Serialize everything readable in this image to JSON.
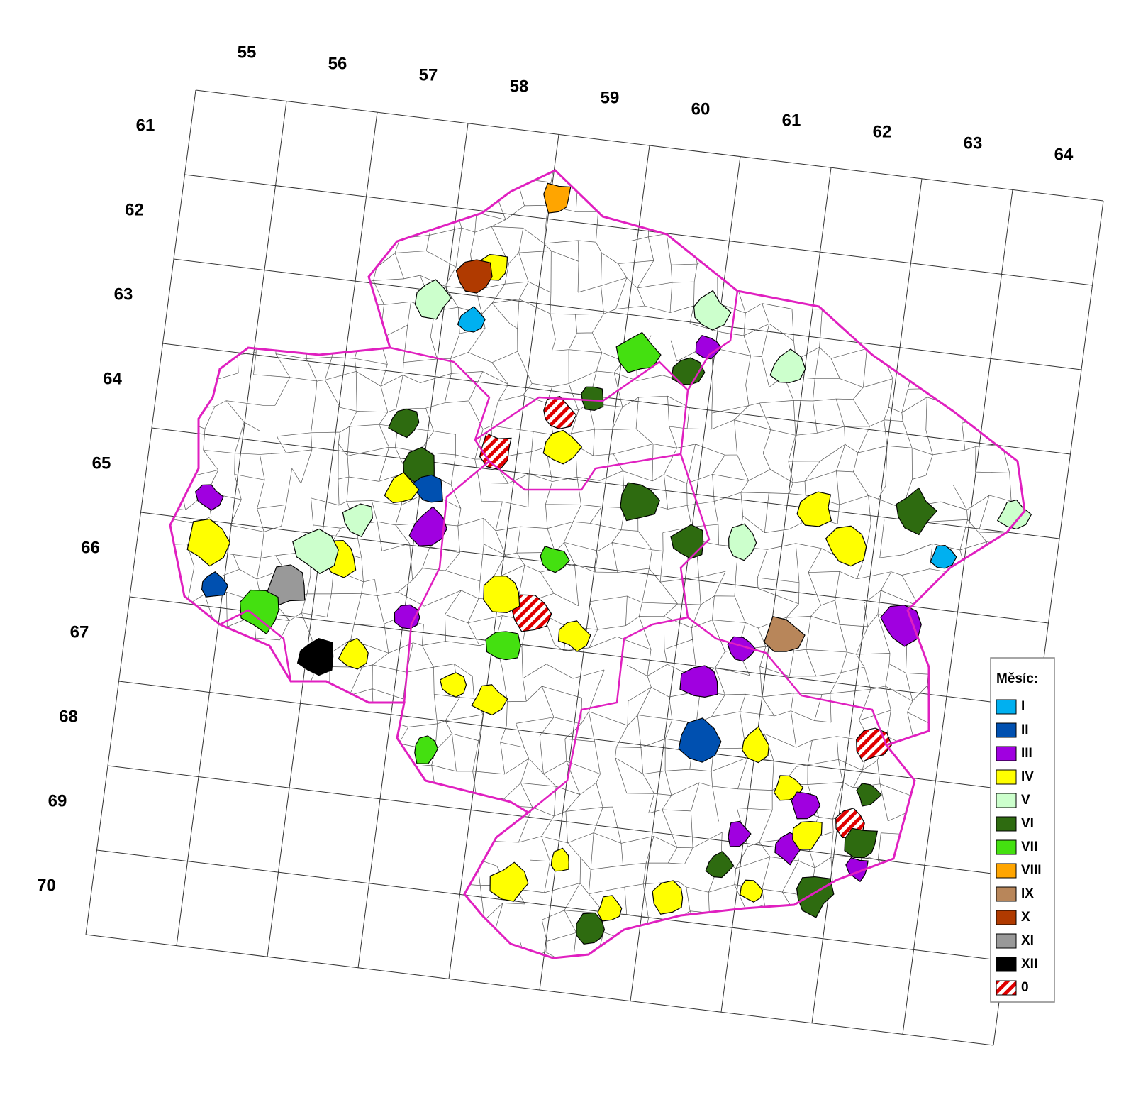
{
  "column_labels": [
    "55",
    "56",
    "57",
    "58",
    "59",
    "60",
    "61",
    "62",
    "63",
    "64"
  ],
  "row_labels": [
    "61",
    "62",
    "63",
    "64",
    "65",
    "66",
    "67",
    "68",
    "69",
    "70"
  ],
  "legend": {
    "title": "Měsíc:",
    "items": [
      {
        "label": "I",
        "color": "#00b0f0"
      },
      {
        "label": "II",
        "color": "#0050b0"
      },
      {
        "label": "III",
        "color": "#a000e0"
      },
      {
        "label": "IV",
        "color": "#ffff00"
      },
      {
        "label": "V",
        "color": "#ccffcc"
      },
      {
        "label": "VI",
        "color": "#2e6b10"
      },
      {
        "label": "VII",
        "color": "#44e010"
      },
      {
        "label": "VIII",
        "color": "#ffa500"
      },
      {
        "label": "IX",
        "color": "#b8865a"
      },
      {
        "label": "X",
        "color": "#b03a00"
      },
      {
        "label": "XI",
        "color": "#999999"
      },
      {
        "label": "XII",
        "color": "#000000"
      },
      {
        "label": "0",
        "color": "#e00000",
        "fill": "hatch"
      }
    ]
  }
}
